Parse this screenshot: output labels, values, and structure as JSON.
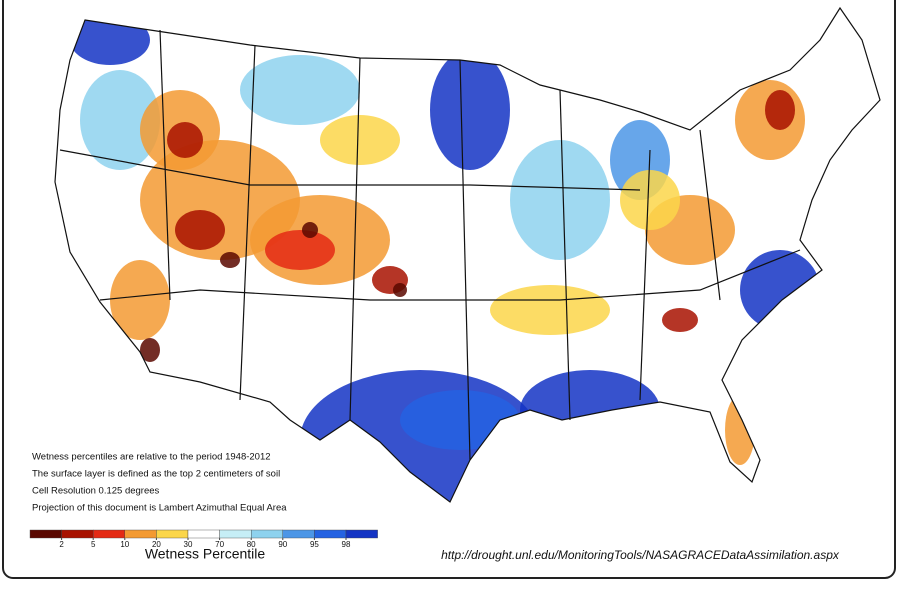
{
  "notes": [
    "Wetness percentiles are relative to the period 1948-2012",
    "The surface layer is defined as the top 2 centimeters of soil",
    "Cell Resolution 0.125 degrees",
    "Projection of this document is Lambert Azimuthal Equal Area"
  ],
  "legend": {
    "title": "Wetness Percentile",
    "ticks": [
      2,
      5,
      10,
      20,
      30,
      70,
      80,
      90,
      95,
      98
    ],
    "colors": [
      "#5a0800",
      "#a81200",
      "#e42a14",
      "#f39a32",
      "#fbd64a",
      "#ffffff",
      "#c6eef6",
      "#8ed2ee",
      "#4c96e6",
      "#2462e2",
      "#1434c4"
    ]
  },
  "source_url": "http://drought.unl.edu/MonitoringTools/NASAGRACEDataAssimilation.aspx"
}
